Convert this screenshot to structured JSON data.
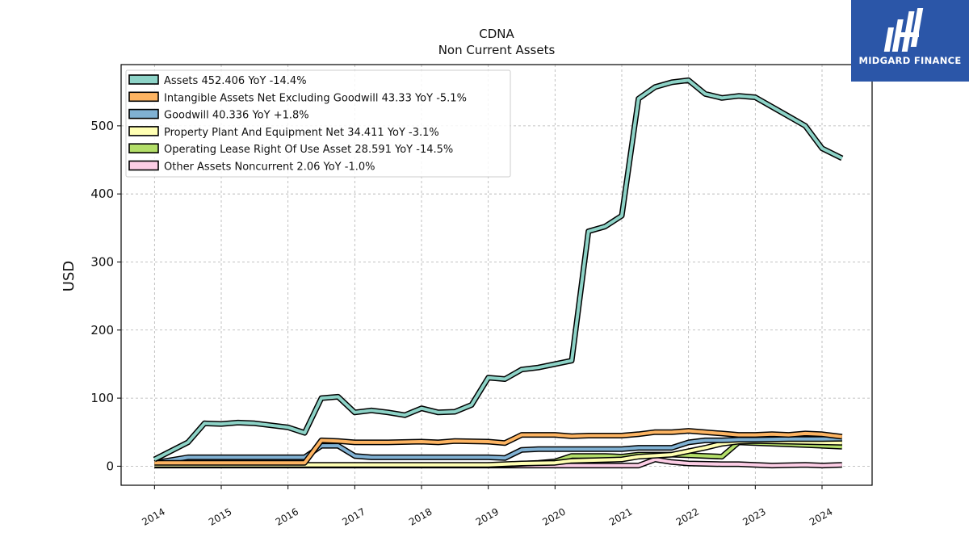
{
  "chart_data": {
    "type": "line",
    "title": "CDNA",
    "subtitle": "Non Current  Assets",
    "ylabel": "USD",
    "xlabel": "",
    "ylim": [
      -28,
      590
    ],
    "xlim": [
      2013.5,
      2024.75
    ],
    "yticks": [
      0,
      100,
      200,
      300,
      400,
      500
    ],
    "xticks": [
      "2014",
      "2015",
      "2016",
      "2017",
      "2018",
      "2019",
      "2020",
      "2021",
      "2022",
      "2023",
      "2024"
    ],
    "grid": true,
    "legend_position": "top-left",
    "series": [
      {
        "name": "Assets",
        "legend_label": "Assets  452.406 YoY -14.4%",
        "color": "#8dd3c7",
        "points": [
          [
            2014.0,
            10
          ],
          [
            2014.5,
            35
          ],
          [
            2014.75,
            63
          ],
          [
            2015.0,
            62
          ],
          [
            2015.25,
            64
          ],
          [
            2015.5,
            63
          ],
          [
            2015.75,
            60
          ],
          [
            2016.0,
            57
          ],
          [
            2016.25,
            49
          ],
          [
            2016.5,
            100
          ],
          [
            2016.75,
            102
          ],
          [
            2017.0,
            79
          ],
          [
            2017.25,
            82
          ],
          [
            2017.5,
            79
          ],
          [
            2017.75,
            75
          ],
          [
            2018.0,
            85
          ],
          [
            2018.25,
            79
          ],
          [
            2018.5,
            80
          ],
          [
            2018.75,
            90
          ],
          [
            2019.0,
            130
          ],
          [
            2019.25,
            128
          ],
          [
            2019.5,
            142
          ],
          [
            2019.75,
            145
          ],
          [
            2020.0,
            150
          ],
          [
            2020.25,
            155
          ],
          [
            2020.5,
            345
          ],
          [
            2020.75,
            352
          ],
          [
            2021.0,
            368
          ],
          [
            2021.25,
            540
          ],
          [
            2021.5,
            557
          ],
          [
            2021.75,
            564
          ],
          [
            2022.0,
            567
          ],
          [
            2022.25,
            547
          ],
          [
            2022.5,
            541
          ],
          [
            2022.75,
            544
          ],
          [
            2023.0,
            542
          ],
          [
            2023.25,
            528
          ],
          [
            2023.5,
            514
          ],
          [
            2023.75,
            500
          ],
          [
            2024.0,
            467
          ],
          [
            2024.3,
            452.406
          ]
        ]
      },
      {
        "name": "Intangible Assets Net Excluding Goodwill",
        "legend_label": "Intangible Assets Net Excluding Goodwill  43.33 YoY -5.1%",
        "color": "#fdb462",
        "points": [
          [
            2014.0,
            5
          ],
          [
            2016.25,
            5
          ],
          [
            2016.5,
            38
          ],
          [
            2016.75,
            37
          ],
          [
            2017.0,
            35
          ],
          [
            2017.5,
            35
          ],
          [
            2018.0,
            36
          ],
          [
            2018.25,
            35
          ],
          [
            2018.5,
            37
          ],
          [
            2019.0,
            36
          ],
          [
            2019.25,
            34
          ],
          [
            2019.5,
            46
          ],
          [
            2020.0,
            46
          ],
          [
            2020.25,
            44
          ],
          [
            2020.5,
            45
          ],
          [
            2021.0,
            45
          ],
          [
            2021.25,
            47
          ],
          [
            2021.5,
            50
          ],
          [
            2021.75,
            50
          ],
          [
            2022.0,
            52
          ],
          [
            2022.5,
            48
          ],
          [
            2022.75,
            46
          ],
          [
            2023.0,
            46
          ],
          [
            2023.25,
            47
          ],
          [
            2023.5,
            46
          ],
          [
            2023.75,
            48
          ],
          [
            2024.0,
            47
          ],
          [
            2024.3,
            43.33
          ]
        ]
      },
      {
        "name": "Goodwill",
        "legend_label": "Goodwill  40.336 YoY +1.8%",
        "color": "#80b1d3",
        "points": [
          [
            2014.0,
            5
          ],
          [
            2014.5,
            13
          ],
          [
            2016.25,
            13
          ],
          [
            2016.5,
            30
          ],
          [
            2016.75,
            30
          ],
          [
            2017.0,
            15
          ],
          [
            2017.25,
            13
          ],
          [
            2018.0,
            13
          ],
          [
            2019.0,
            13
          ],
          [
            2019.25,
            12
          ],
          [
            2019.5,
            24
          ],
          [
            2019.75,
            25
          ],
          [
            2020.0,
            25
          ],
          [
            2021.0,
            25
          ],
          [
            2021.25,
            27
          ],
          [
            2021.75,
            27
          ],
          [
            2022.0,
            35
          ],
          [
            2022.25,
            38
          ],
          [
            2022.5,
            38
          ],
          [
            2022.75,
            39
          ],
          [
            2023.0,
            39
          ],
          [
            2023.5,
            40
          ],
          [
            2024.0,
            40
          ],
          [
            2024.3,
            40.336
          ]
        ]
      },
      {
        "name": "Property Plant And Equipment Net",
        "legend_label": "Property Plant And Equipment Net  34.411 YoY -3.1%",
        "color": "#ffffb3",
        "points": [
          [
            2014.0,
            2
          ],
          [
            2019.0,
            2
          ],
          [
            2019.5,
            4
          ],
          [
            2020.0,
            5
          ],
          [
            2020.25,
            8
          ],
          [
            2021.0,
            10
          ],
          [
            2021.25,
            14
          ],
          [
            2021.75,
            17
          ],
          [
            2022.0,
            22
          ],
          [
            2022.25,
            27
          ],
          [
            2022.5,
            33
          ],
          [
            2022.75,
            36
          ],
          [
            2023.0,
            37
          ],
          [
            2023.5,
            36
          ],
          [
            2024.0,
            35
          ],
          [
            2024.3,
            34.411
          ]
        ]
      },
      {
        "name": "Operating Lease Right Of Use Asset",
        "legend_label": "Operating Lease Right Of Use Asset  28.591 YoY -14.5%",
        "color": "#b3de69",
        "points": [
          [
            2019.0,
            1
          ],
          [
            2019.75,
            5
          ],
          [
            2020.0,
            7
          ],
          [
            2020.25,
            15
          ],
          [
            2020.75,
            15
          ],
          [
            2021.0,
            14
          ],
          [
            2021.25,
            17
          ],
          [
            2021.75,
            17
          ],
          [
            2022.0,
            16
          ],
          [
            2022.5,
            14
          ],
          [
            2022.75,
            35
          ],
          [
            2023.0,
            34
          ],
          [
            2023.5,
            32
          ],
          [
            2024.0,
            30
          ],
          [
            2024.3,
            28.591
          ]
        ]
      },
      {
        "name": "Other Assets Noncurrent",
        "legend_label": "Other Assets Noncurrent  2.06 YoY -1.0%",
        "color": "#fccde5",
        "points": [
          [
            2014.0,
            1
          ],
          [
            2021.25,
            1
          ],
          [
            2021.5,
            10
          ],
          [
            2021.75,
            6
          ],
          [
            2022.0,
            4
          ],
          [
            2022.5,
            3
          ],
          [
            2022.75,
            3
          ],
          [
            2023.0,
            2
          ],
          [
            2023.25,
            1
          ],
          [
            2023.75,
            2
          ],
          [
            2024.0,
            1
          ],
          [
            2024.3,
            2.06
          ]
        ]
      }
    ]
  },
  "logo": {
    "text": "MIDGARD FINANCE"
  }
}
